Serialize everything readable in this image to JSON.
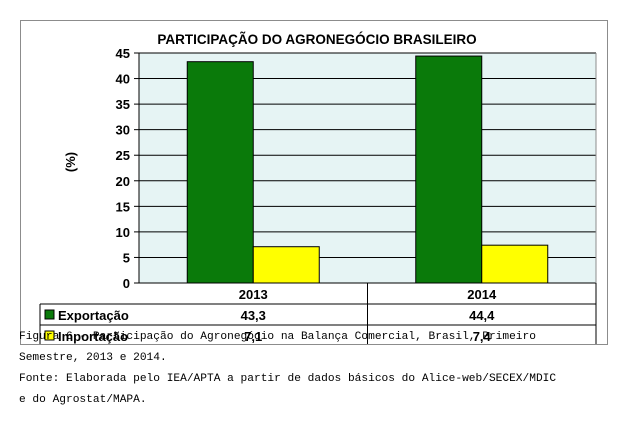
{
  "chart_data": {
    "type": "bar",
    "title": "PARTICIPAÇÃO DO AGRONEGÓCIO BRASILEIRO",
    "ylabel": "(%)",
    "xlabel": "",
    "categories": [
      "2013",
      "2014"
    ],
    "series": [
      {
        "name": "Exportação",
        "values": [
          43.3,
          44.4
        ],
        "labels": [
          "43,3",
          "44,4"
        ],
        "color": "#0a7a0a"
      },
      {
        "name": "Importação",
        "values": [
          7.1,
          7.4
        ],
        "labels": [
          "7,1",
          "7,4"
        ],
        "color": "#ffff00"
      }
    ],
    "ylim": [
      0,
      45
    ],
    "yticks": [
      0,
      5,
      10,
      15,
      20,
      25,
      30,
      35,
      40,
      45
    ],
    "grid": true,
    "legend": "data-table",
    "plot_background": "#e6f4f4"
  },
  "caption": {
    "figure_line1": "Figura 6 - Participação do Agronegócio na Balança Comercial, Brasil, Primeiro",
    "figure_line2": "Semestre, 2013 e 2014.",
    "source_line1": "Fonte: Elaborada pelo IEA/APTA a partir de dados básicos do Alice-web/SECEX/MDIC",
    "source_line2": "e do Agrostat/MAPA."
  }
}
